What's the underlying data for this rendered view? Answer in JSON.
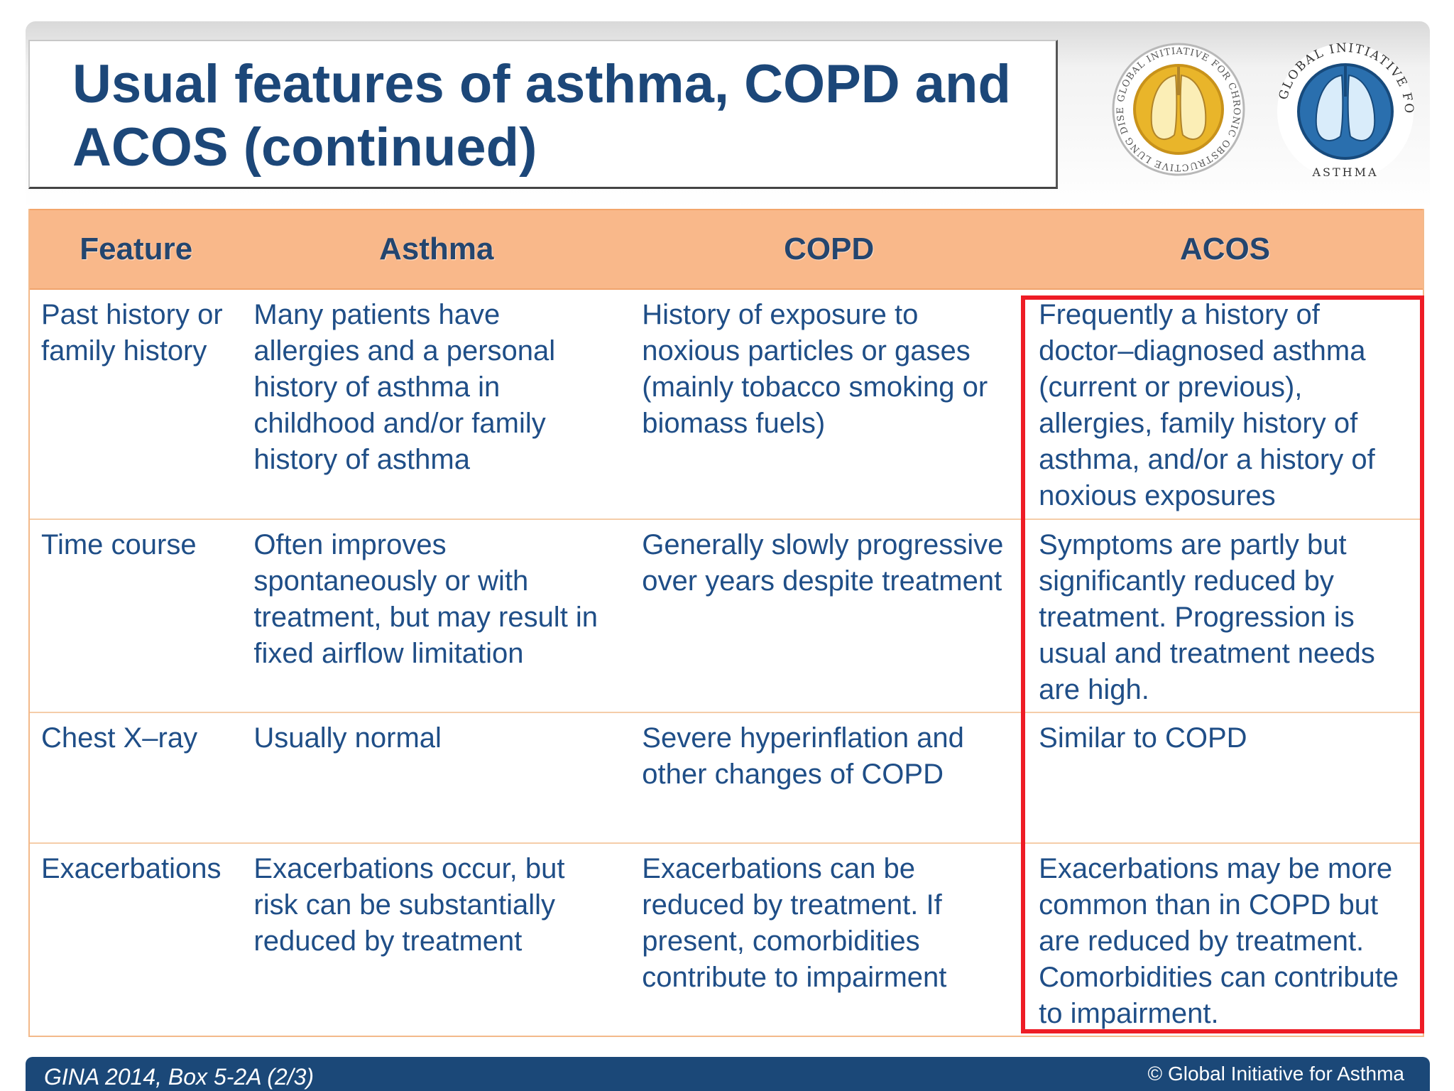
{
  "slide": {
    "title": "Usual features of asthma, COPD and ACOS (continued)"
  },
  "logos": {
    "copd": {
      "text": "GLOBAL INITIATIVE FOR CHRONIC OBSTRUCTIVE LUNG DISEASE",
      "color": "#e8b420"
    },
    "asthma": {
      "text": "GLOBAL INITIATIVE FOR ASTHMA",
      "color": "#1e6aa8"
    }
  },
  "table": {
    "headers": [
      "Feature",
      "Asthma",
      "COPD",
      "ACOS"
    ],
    "rows": [
      {
        "feature": "Past history or\nfamily history",
        "asthma": "Many patients have\nallergies and a personal\nhistory of asthma in\nchildhood and/or family\nhistory of asthma",
        "copd": "History of exposure to\nnoxious particles or gases\n(mainly tobacco smoking or\nbiomass fuels)",
        "acos": "Frequently a history of\ndoctor–diagnosed asthma\n(current or previous),\nallergies, family history of\nasthma, and/or a history of\nnoxious exposures"
      },
      {
        "feature": "Time course",
        "asthma": "Often improves\nspontaneously or with\ntreatment, but may result in\nfixed airflow limitation",
        "copd": "Generally slowly progressive\nover years despite treatment",
        "acos": "Symptoms are partly but\nsignificantly reduced by\ntreatment. Progression is\nusual and treatment needs\nare high."
      },
      {
        "feature": "Chest X–ray",
        "asthma": "Usually normal",
        "copd": "Severe hyperinflation and\nother changes of COPD",
        "acos": "Similar to COPD"
      },
      {
        "feature": "Exacerbations",
        "asthma": "Exacerbations occur, but\nrisk can be substantially\nreduced by treatment",
        "copd": "Exacerbations can be\nreduced by treatment. If\npresent, comorbidities\ncontribute to impairment",
        "acos": "Exacerbations may be more\ncommon than in COPD but\nare reduced by treatment.\nComorbidities can contribute\nto impairment."
      }
    ]
  },
  "highlight_color": "#ee1c25",
  "footer": {
    "source": "GINA 2014, Box 5-2A (2/3)",
    "copyright": "© Global Initiative for Asthma"
  }
}
